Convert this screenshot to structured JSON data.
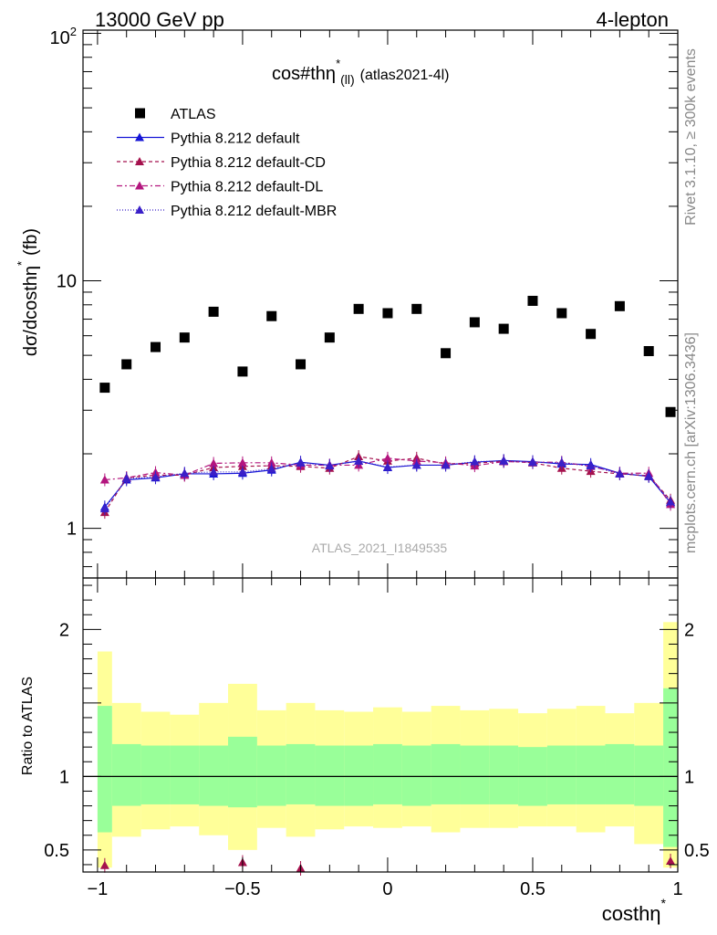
{
  "header": {
    "left": "13000 GeV pp",
    "right": "4-lepton"
  },
  "side": {
    "rivet": "Rivet 3.1.10, ≥ 300k events",
    "mcplots": "mcplots.cern.ch [arXiv:1306.3436]"
  },
  "chart_data": {
    "type": "scatter",
    "title_main": "cos#thη",
    "title_sup": "*",
    "title_sub": "(ll)",
    "title_tail": "(atlas2021-4l)",
    "watermark": "ATLAS_2021_I1849535",
    "ylabel": "dσ/dcosthη",
    "ylabel_sup": "*",
    "ylabel_unit": "(fb)",
    "ratio_ylabel": "Ratio to ATLAS",
    "xlabel": "costhη",
    "xlabel_sup": "*",
    "xlim": [
      -1.05,
      1.0
    ],
    "ylim": [
      0.63,
      103
    ],
    "ratio_ylim": [
      0.35,
      2.35
    ],
    "x_ticks": [
      "−1",
      "−0.5",
      "0",
      "0.5",
      "1"
    ],
    "x_tick_values": [
      -1,
      -0.5,
      0,
      0.5,
      1
    ],
    "y_ticks_main": [
      "10",
      "1"
    ],
    "y_tick_values_main": [
      10,
      1
    ],
    "y_top_label_base": "10",
    "y_top_label_exp": "2",
    "y_ticks_ratio": [
      "2",
      "1",
      "0.5"
    ],
    "y_tick_values_ratio": [
      2,
      1,
      0.5
    ],
    "x": [
      -0.975,
      -0.9,
      -0.8,
      -0.7,
      -0.6,
      -0.5,
      -0.4,
      -0.3,
      -0.2,
      -0.1,
      0.0,
      0.1,
      0.2,
      0.3,
      0.4,
      0.5,
      0.6,
      0.7,
      0.8,
      0.9,
      0.975
    ],
    "bin_edges": [
      -1.0,
      -0.95,
      -0.85,
      -0.75,
      -0.65,
      -0.55,
      -0.45,
      -0.35,
      -0.25,
      -0.15,
      -0.05,
      0.05,
      0.15,
      0.25,
      0.35,
      0.45,
      0.55,
      0.65,
      0.75,
      0.85,
      0.95,
      1.0
    ],
    "series": [
      {
        "name": "ATLAS",
        "marker": "square",
        "color": "#000000",
        "values": [
          3.7,
          4.6,
          5.4,
          5.9,
          7.5,
          4.3,
          7.2,
          4.6,
          5.9,
          7.7,
          7.4,
          7.7,
          5.1,
          6.8,
          6.4,
          8.3,
          7.4,
          6.1,
          7.9,
          5.2,
          2.95
        ]
      },
      {
        "name": "Pythia 8.212 default",
        "marker": "triangle",
        "color": "#1515d6",
        "dash": "",
        "values": [
          1.22,
          1.57,
          1.6,
          1.66,
          1.66,
          1.67,
          1.72,
          1.85,
          1.8,
          1.87,
          1.76,
          1.8,
          1.8,
          1.85,
          1.88,
          1.86,
          1.82,
          1.81,
          1.67,
          1.62,
          1.27
        ]
      },
      {
        "name": "Pythia 8.212 default-CD",
        "marker": "triangle",
        "color": "#a5114d",
        "dash": "4,3",
        "values": [
          1.16,
          1.6,
          1.64,
          1.64,
          1.76,
          1.78,
          1.79,
          1.78,
          1.75,
          1.95,
          1.87,
          1.92,
          1.82,
          1.83,
          1.87,
          1.84,
          1.75,
          1.7,
          1.66,
          1.63,
          1.3
        ]
      },
      {
        "name": "Pythia 8.212 default-DL",
        "marker": "triangle",
        "color": "#b3157e",
        "dash": "6,3,2,3",
        "values": [
          1.57,
          1.6,
          1.68,
          1.64,
          1.83,
          1.84,
          1.84,
          1.8,
          1.8,
          1.8,
          1.92,
          1.87,
          1.84,
          1.79,
          1.86,
          1.85,
          1.85,
          1.78,
          1.67,
          1.67,
          1.25
        ]
      },
      {
        "name": "Pythia 8.212 default-MBR",
        "marker": "triangle",
        "color": "#3a20c8",
        "dash": "1,2",
        "values": [
          1.2,
          1.59,
          1.61,
          1.67,
          1.69,
          1.69,
          1.74,
          1.84,
          1.79,
          1.87,
          1.77,
          1.8,
          1.8,
          1.86,
          1.87,
          1.85,
          1.84,
          1.79,
          1.66,
          1.63,
          1.28
        ]
      }
    ],
    "ratio_points": [
      {
        "x": -0.975,
        "value": 0.37
      },
      {
        "x": -0.5,
        "value": 0.39
      },
      {
        "x": -0.3,
        "value": 0.35
      },
      {
        "x": 0.975,
        "value": 0.4
      }
    ],
    "band_inner": {
      "low": [
        0.62,
        0.8,
        0.81,
        0.81,
        0.8,
        0.79,
        0.8,
        0.81,
        0.8,
        0.8,
        0.81,
        0.8,
        0.81,
        0.81,
        0.81,
        0.8,
        0.81,
        0.81,
        0.81,
        0.8,
        0.52
      ],
      "high": [
        1.48,
        1.22,
        1.21,
        1.21,
        1.21,
        1.27,
        1.21,
        1.22,
        1.21,
        1.21,
        1.22,
        1.21,
        1.22,
        1.21,
        1.21,
        1.2,
        1.21,
        1.21,
        1.22,
        1.21,
        1.6
      ]
    },
    "band_outer": {
      "low": [
        0.38,
        0.59,
        0.64,
        0.66,
        0.6,
        0.5,
        0.65,
        0.59,
        0.64,
        0.66,
        0.65,
        0.66,
        0.62,
        0.65,
        0.65,
        0.66,
        0.66,
        0.62,
        0.66,
        0.54,
        0.38
      ],
      "high": [
        1.85,
        1.5,
        1.44,
        1.42,
        1.5,
        1.63,
        1.45,
        1.5,
        1.45,
        1.44,
        1.47,
        1.44,
        1.48,
        1.45,
        1.46,
        1.43,
        1.46,
        1.48,
        1.43,
        1.5,
        2.05
      ]
    },
    "band_colors": {
      "inner": "#99ff99",
      "outer": "#ffff99"
    },
    "legend_position": "top-left"
  }
}
